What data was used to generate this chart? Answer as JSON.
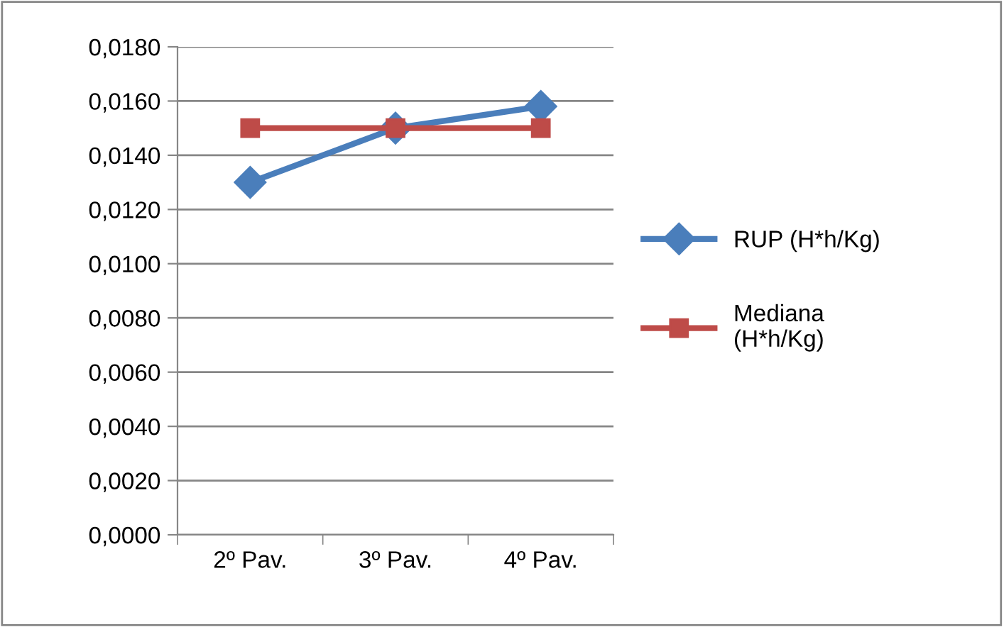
{
  "chart_data": {
    "type": "line",
    "categories": [
      "2º Pav.",
      "3º Pav.",
      "4º Pav."
    ],
    "series": [
      {
        "name": "RUP (H*h/Kg)",
        "color": "#4a7ebb",
        "marker": "diamond",
        "values": [
          0.013,
          0.015,
          0.0158
        ]
      },
      {
        "name": "Mediana (H*h/Kg)",
        "color": "#be4b48",
        "marker": "square",
        "values": [
          0.015,
          0.015,
          0.015
        ]
      }
    ],
    "ylim": [
      0,
      0.018
    ],
    "yticks": [
      {
        "value": 0,
        "label": "0,0000"
      },
      {
        "value": 0.002,
        "label": "0,0020"
      },
      {
        "value": 0.004,
        "label": "0,0040"
      },
      {
        "value": 0.006,
        "label": "0,0060"
      },
      {
        "value": 0.008,
        "label": "0,0080"
      },
      {
        "value": 0.01,
        "label": "0,0100"
      },
      {
        "value": 0.012,
        "label": "0,0120"
      },
      {
        "value": 0.014,
        "label": "0,0140"
      },
      {
        "value": 0.016,
        "label": "0,0160"
      },
      {
        "value": 0.018,
        "label": "0,0180"
      }
    ],
    "grid": "y",
    "legend": "right",
    "line_style": "solid"
  }
}
